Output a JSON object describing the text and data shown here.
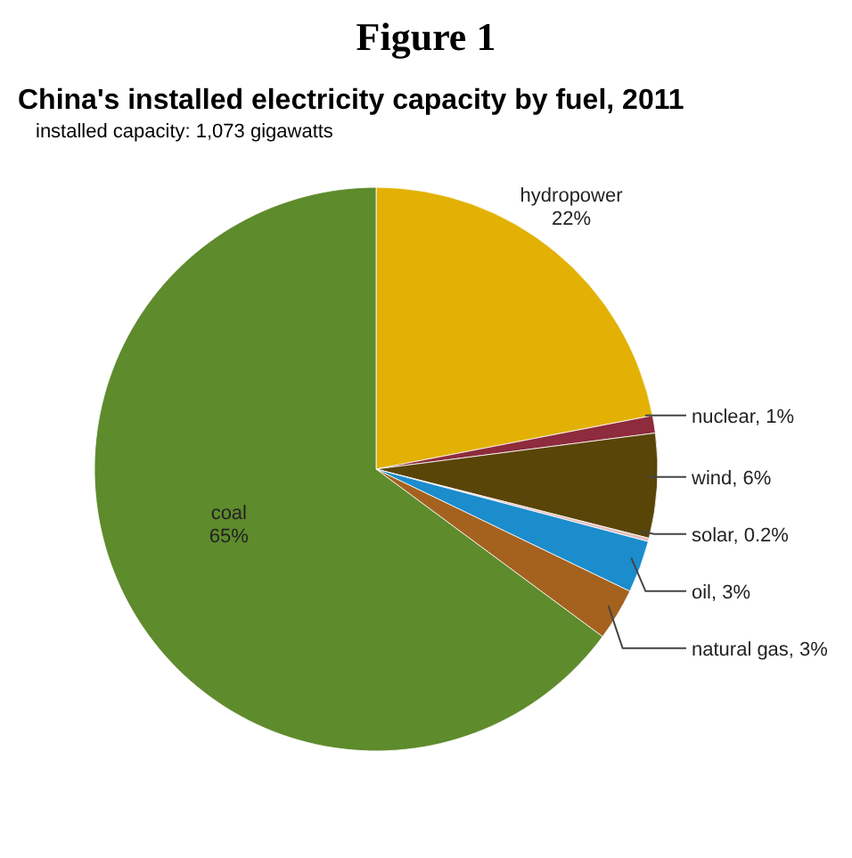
{
  "chart_data": {
    "type": "pie",
    "title": "China's installed electricity capacity by fuel, 2011",
    "subtitle": "installed capacity: 1,073 gigawatts",
    "annotations": [
      "Figure 1"
    ],
    "categories": [
      "hydropower",
      "nuclear",
      "wind",
      "solar",
      "oil",
      "natural gas",
      "coal"
    ],
    "values": [
      22,
      1,
      6,
      0.2,
      3,
      3,
      65
    ],
    "value_labels": [
      "22%",
      "1%",
      "6%",
      "0.2%",
      "3%",
      "3%",
      "65%"
    ],
    "colors": [
      "#e2b104",
      "#8e2b3c",
      "#5a4508",
      "#e6bcbc",
      "#1b8ccc",
      "#a5621f",
      "#5e8b2c"
    ]
  }
}
